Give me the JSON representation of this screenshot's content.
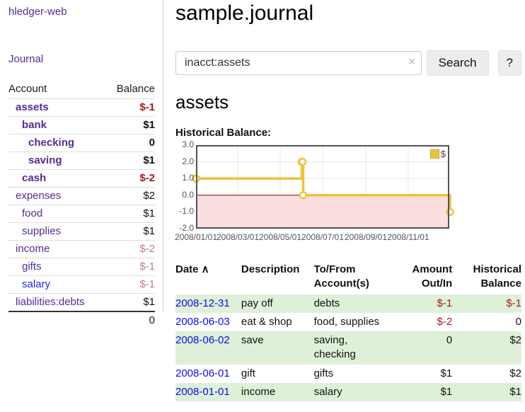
{
  "sidebar": {
    "app_title": "hledger-web",
    "journal_label": "Journal",
    "accounts_table": {
      "headers": {
        "account": "Account",
        "balance": "Balance"
      },
      "rows": [
        {
          "account": "assets",
          "indent": 1,
          "bold": true,
          "balance": "$-1",
          "balance_color": "#9e1b1b",
          "link_color": "#542c90"
        },
        {
          "account": "bank",
          "indent": 2,
          "bold": true,
          "balance": "$1",
          "balance_color": "#111111",
          "link_color": "#542c90"
        },
        {
          "account": "checking",
          "indent": 3,
          "bold": true,
          "balance": "0",
          "balance_color": "#111111",
          "link_color": "#542c90"
        },
        {
          "account": "saving",
          "indent": 3,
          "bold": true,
          "balance": "$1",
          "balance_color": "#111111",
          "link_color": "#542c90"
        },
        {
          "account": "cash",
          "indent": 2,
          "bold": true,
          "balance": "$-2",
          "balance_color": "#9e1b1b",
          "link_color": "#542c90"
        },
        {
          "account": "expenses",
          "indent": 1,
          "bold": false,
          "balance": "$2",
          "balance_color": "#111111",
          "link_color": "#542c90"
        },
        {
          "account": "food",
          "indent": 2,
          "bold": false,
          "balance": "$1",
          "balance_color": "#111111",
          "link_color": "#542c90"
        },
        {
          "account": "supplies",
          "indent": 2,
          "bold": false,
          "balance": "$1",
          "balance_color": "#111111",
          "link_color": "#542c90"
        },
        {
          "account": "income",
          "indent": 1,
          "bold": false,
          "balance": "$-2",
          "balance_color": "#bd7d7d",
          "link_color": "#542c90"
        },
        {
          "account": "gifts",
          "indent": 2,
          "bold": false,
          "balance": "$-1",
          "balance_color": "#bd7d7d",
          "link_color": "#542c90"
        },
        {
          "account": "salary",
          "indent": 2,
          "bold": false,
          "balance": "$-1",
          "balance_color": "#bd7d7d",
          "link_color": "#2424e0"
        },
        {
          "account": "liabilities:debts",
          "indent": 1,
          "bold": false,
          "balance": "$1",
          "balance_color": "#111111",
          "link_color": "#542c90"
        }
      ],
      "total": "0"
    }
  },
  "main": {
    "title": "sample.journal",
    "search": {
      "value": "inacct:assets",
      "clear_icon": "×",
      "button_label": "Search",
      "help_label": "?"
    },
    "account_heading": "assets",
    "chart_label": "Historical Balance:",
    "register_table": {
      "headers": [
        {
          "label": "Date",
          "sort_icon": "∧",
          "align": "left"
        },
        {
          "label": "Description",
          "align": "left"
        },
        {
          "label": "To/From Account(s)",
          "align": "left"
        },
        {
          "label": "Amount Out/In",
          "align": "right"
        },
        {
          "label": "Historical Balance",
          "align": "right"
        }
      ],
      "rows": [
        {
          "date": "2008-12-31",
          "description": "pay off",
          "accounts": "debts",
          "amount": "$-1",
          "amount_color": "#9e1b1b",
          "balance": "$-1",
          "balance_color": "#9e1b1b",
          "striped": true
        },
        {
          "date": "2008-06-03",
          "description": "eat & shop",
          "accounts": "food, supplies",
          "amount": "$-2",
          "amount_color": "#9e1b1b",
          "balance": "0",
          "balance_color": "#111111",
          "striped": false
        },
        {
          "date": "2008-06-02",
          "description": "save",
          "accounts": "saving, checking",
          "amount": "0",
          "amount_color": "#111111",
          "balance": "$2",
          "balance_color": "#111111",
          "striped": true
        },
        {
          "date": "2008-06-01",
          "description": "gift",
          "accounts": "gifts",
          "amount": "$1",
          "amount_color": "#111111",
          "balance": "$2",
          "balance_color": "#111111",
          "striped": false
        },
        {
          "date": "2008-01-01",
          "description": "income",
          "accounts": "salary",
          "amount": "$1",
          "amount_color": "#111111",
          "balance": "$1",
          "balance_color": "#111111",
          "striped": true
        }
      ]
    }
  },
  "chart_data": {
    "type": "line",
    "title": "Historical Balance:",
    "step": true,
    "xlim_days": [
      0,
      364
    ],
    "ylim": [
      -2,
      3
    ],
    "series": [
      {
        "name": "$",
        "color": "#edc240",
        "points": [
          {
            "date": "2008-01-01",
            "day": 0,
            "value": 1
          },
          {
            "date": "2008-06-01",
            "day": 152,
            "value": 2
          },
          {
            "date": "2008-06-02",
            "day": 153,
            "value": 2
          },
          {
            "date": "2008-06-03",
            "day": 154,
            "value": 0
          },
          {
            "date": "2008-12-31",
            "day": 365,
            "value": -1
          }
        ]
      }
    ],
    "x_ticks": [
      {
        "day": 0,
        "label": "2008/01/01"
      },
      {
        "day": 60,
        "label": "2008/03/01"
      },
      {
        "day": 121,
        "label": "2008/05/01"
      },
      {
        "day": 182,
        "label": "2008/07/01"
      },
      {
        "day": 244,
        "label": "2008/09/01"
      },
      {
        "day": 305,
        "label": "2008/11/01"
      }
    ],
    "y_ticks": [
      {
        "value": 3,
        "label": "3.0"
      },
      {
        "value": 2,
        "label": "2.0"
      },
      {
        "value": 1,
        "label": "1.0"
      },
      {
        "value": 0,
        "label": "0.0"
      },
      {
        "value": -1,
        "label": "-1.0"
      },
      {
        "value": -2,
        "label": "-2.0"
      }
    ],
    "legend": {
      "label": "$",
      "box_color": "#edc240",
      "box_border_color": "#cda32e",
      "position": "top-right"
    },
    "grid_color": "#e7e7e7",
    "border_color": "#545454",
    "zero_line_color": "#8b0000",
    "negative_region_color": "#fbdede",
    "marker_fill": "#ffffff"
  }
}
